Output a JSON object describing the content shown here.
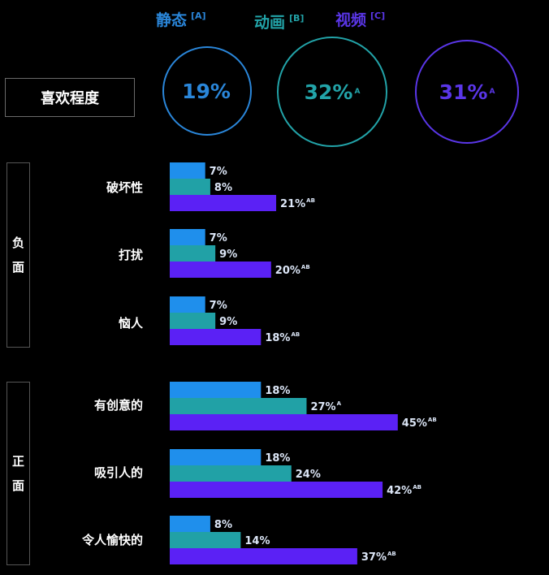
{
  "header": {
    "groups": [
      {
        "name": "静态",
        "tag": "[A]",
        "color": "#2a86d9"
      },
      {
        "name": "动画",
        "tag": "[B]",
        "color": "#22a3a8"
      },
      {
        "name": "视频",
        "tag": "[C]",
        "color": "#5a36e8"
      }
    ]
  },
  "like_label": "喜欢程度",
  "like_values": [
    {
      "value": "19%",
      "sup": "",
      "color": "#2a86d9"
    },
    {
      "value": "32%",
      "sup": "A",
      "color": "#22a3a8"
    },
    {
      "value": "31%",
      "sup": "A",
      "color": "#5a36e8"
    }
  ],
  "side_labels": {
    "negative": [
      "负",
      "面"
    ],
    "positive": [
      "正",
      "面"
    ]
  },
  "colors": {
    "static": "#1f8fec",
    "animation": "#21a1a6",
    "video": "#5b21f5",
    "label": "#dce6f7"
  },
  "chart_data": {
    "type": "bar",
    "orientation": "horizontal",
    "categories": [
      "破坏性",
      "打扰",
      "恼人",
      "有创意的",
      "吸引人的",
      "令人愉快的"
    ],
    "series": [
      {
        "name": "静态 [A]",
        "values": [
          7,
          7,
          7,
          18,
          18,
          8
        ],
        "sup": [
          "",
          "",
          "",
          "",
          "",
          ""
        ]
      },
      {
        "name": "动画 [B]",
        "values": [
          8,
          9,
          9,
          27,
          24,
          14
        ],
        "sup": [
          "",
          "",
          "",
          "A",
          "",
          ""
        ]
      },
      {
        "name": "视频 [C]",
        "values": [
          21,
          20,
          18,
          45,
          42,
          37
        ],
        "sup": [
          "AB",
          "AB",
          "AB",
          "AB",
          "AB",
          "AB"
        ]
      }
    ],
    "unit": "%"
  }
}
